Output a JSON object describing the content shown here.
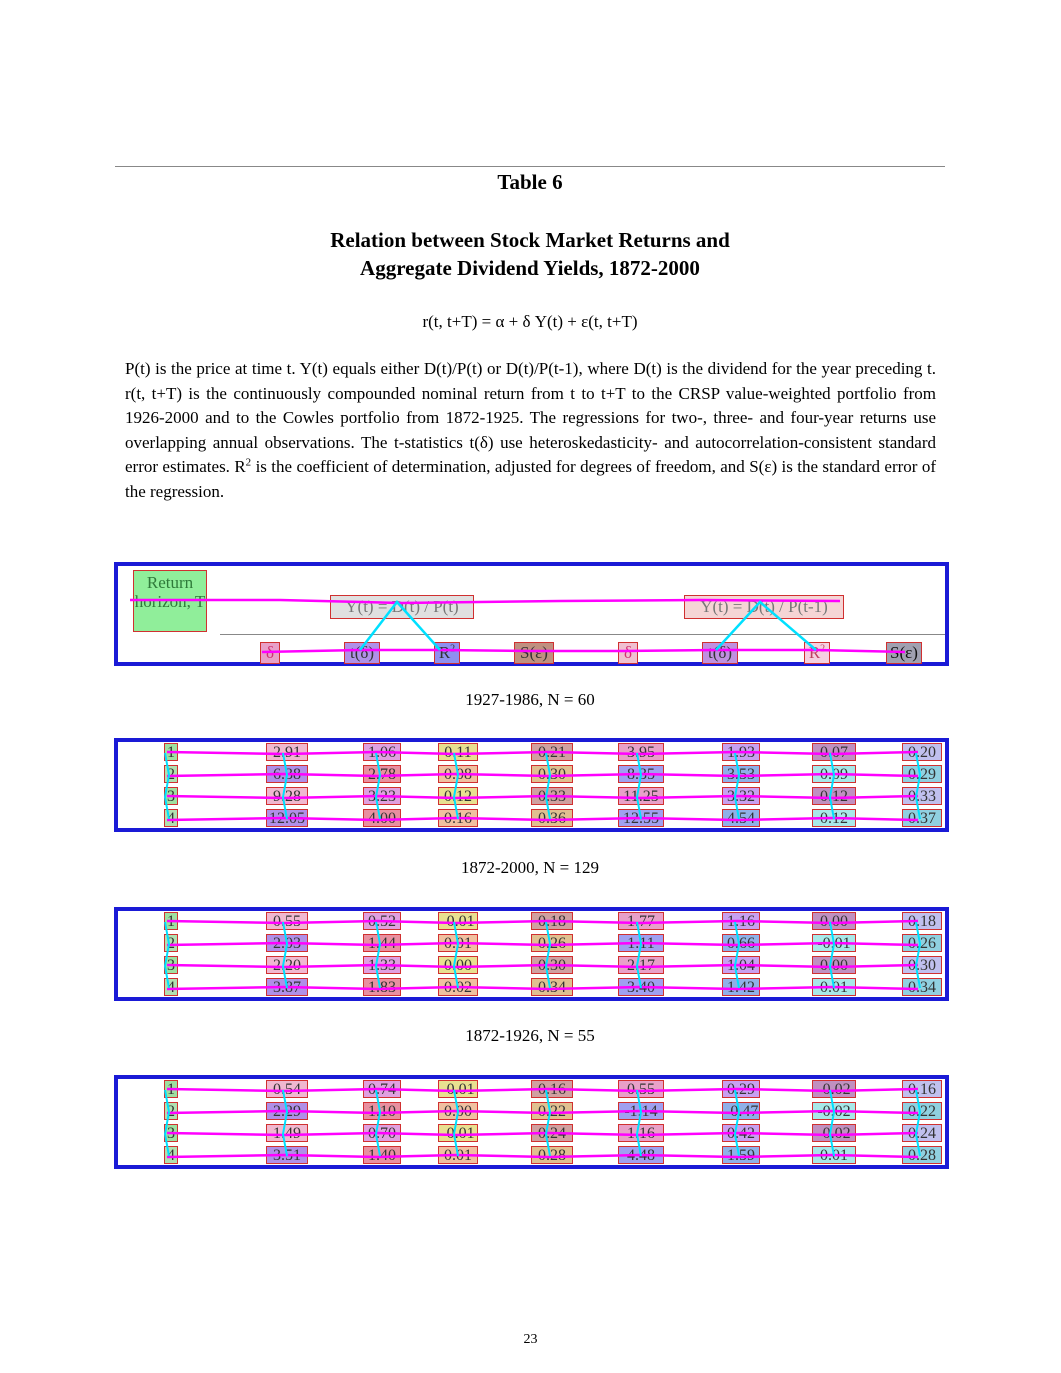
{
  "table_number": "Table 6",
  "title_line1": "Relation between Stock Market Returns and",
  "title_line2": "Aggregate Dividend Yields, 1872-2000",
  "formula": "r(t, t+T)  = α + δ Y(t) + ε(t, t+T)",
  "description": {
    "part1": "P(t) is the price at time t.  Y(t) equals either D(t)/P(t) or D(t)/P(t-1), where D(t) is the dividend for the year preceding t.  r(t, t+T) is the continuously compounded nominal return from t to t+T to the CRSP value-weighted portfolio from 1926-2000 and to the Cowles portfolio from 1872-1925.   The regressions for two-, three- and four-year returns use overlapping annual observations.  The t-statistics t(δ) use heteroskedasticity- and autocorrelation-consistent standard error estimates.  R",
    "sup": "2",
    "part2": " is the coefficient of determination, adjusted for degrees of freedom, and S(ε) is the standard error of the regression."
  },
  "header": {
    "return_horizon": "Return horizon, T",
    "group1": "Y(t) = D(t) / P(t)",
    "group2": "Y(t) = D(t) / P(t-1)",
    "cols": [
      "δ",
      "t(δ)",
      "R",
      "S(ε)",
      "δ",
      "t(δ)",
      "R",
      "S(ε)"
    ],
    "r2_sup": "2"
  },
  "panels": [
    {
      "label": "1927-1986, N = 60",
      "rows": [
        [
          "1",
          "2.91",
          "1.06",
          "0.11",
          "0.21",
          "3.95",
          "1.93",
          "0.07",
          "0.20"
        ],
        [
          "2",
          "6.38",
          "2.78",
          "0.08",
          "0.30",
          "8.35",
          "3.53",
          "0.09",
          "0.29"
        ],
        [
          "3",
          "9.28",
          "3.23",
          "0.12",
          "0.33",
          "11.25",
          "3.32",
          "0.12",
          "0.33"
        ],
        [
          "4",
          "12.05",
          "4.00",
          "0.16",
          "0.36",
          "12.55",
          "4.54",
          "0.12",
          "0.37"
        ]
      ]
    },
    {
      "label": "1872-2000, N = 129",
      "rows": [
        [
          "1",
          "0.55",
          "0.52",
          "-0.01",
          "0.18",
          "1.77",
          "1.16",
          "0.00",
          "0.18"
        ],
        [
          "2",
          "2.03",
          "1.44",
          "0.01",
          "0.26",
          "1.11",
          "0.66",
          "-0.01",
          "0.26"
        ],
        [
          "3",
          "2.20",
          "1.33",
          "0.00",
          "0.30",
          "2.17",
          "1.04",
          "0.00",
          "0.30"
        ],
        [
          "4",
          "3.87",
          "1.83",
          "0.02",
          "0.34",
          "3.40",
          "1.42",
          "0.01",
          "0.34"
        ]
      ]
    },
    {
      "label": "1872-1926, N = 55",
      "rows": [
        [
          "1",
          "0.54",
          "0.74",
          "-0.01",
          "0.16",
          "0.55",
          "0.29",
          "-0.02",
          "0.16"
        ],
        [
          "2",
          "2.29",
          "1.10",
          "0.00",
          "0.22",
          "-1.14",
          "-0.47",
          "-0.02",
          "0.22"
        ],
        [
          "3",
          "1.49",
          "0.70",
          "-0.01",
          "0.24",
          "1.16",
          "0.42",
          "-0.02",
          "0.24"
        ],
        [
          "4",
          "3.51",
          "1.40",
          "0.01",
          "0.28",
          "4.48",
          "1.59",
          "0.01",
          "0.28"
        ]
      ]
    }
  ],
  "page_number": "23",
  "cell_colors": [
    "#8fb0e8",
    "#b08fe8",
    "#e8a0c8",
    "#9ee0a0",
    "#e0c090",
    "#c0c0ee",
    "#e8e090",
    "#a8e8e8",
    "#e890a0",
    "#c8a0f0",
    "#f0b8d0",
    "#a0a0f0",
    "#b0e0b0",
    "#d0a0a0",
    "#90d0e0",
    "#f0c0a0",
    "#c090c0",
    "#e0a0e0"
  ],
  "overlay_colors": {
    "row_line": "#ff00ff",
    "col_line": "#00e0ff"
  }
}
